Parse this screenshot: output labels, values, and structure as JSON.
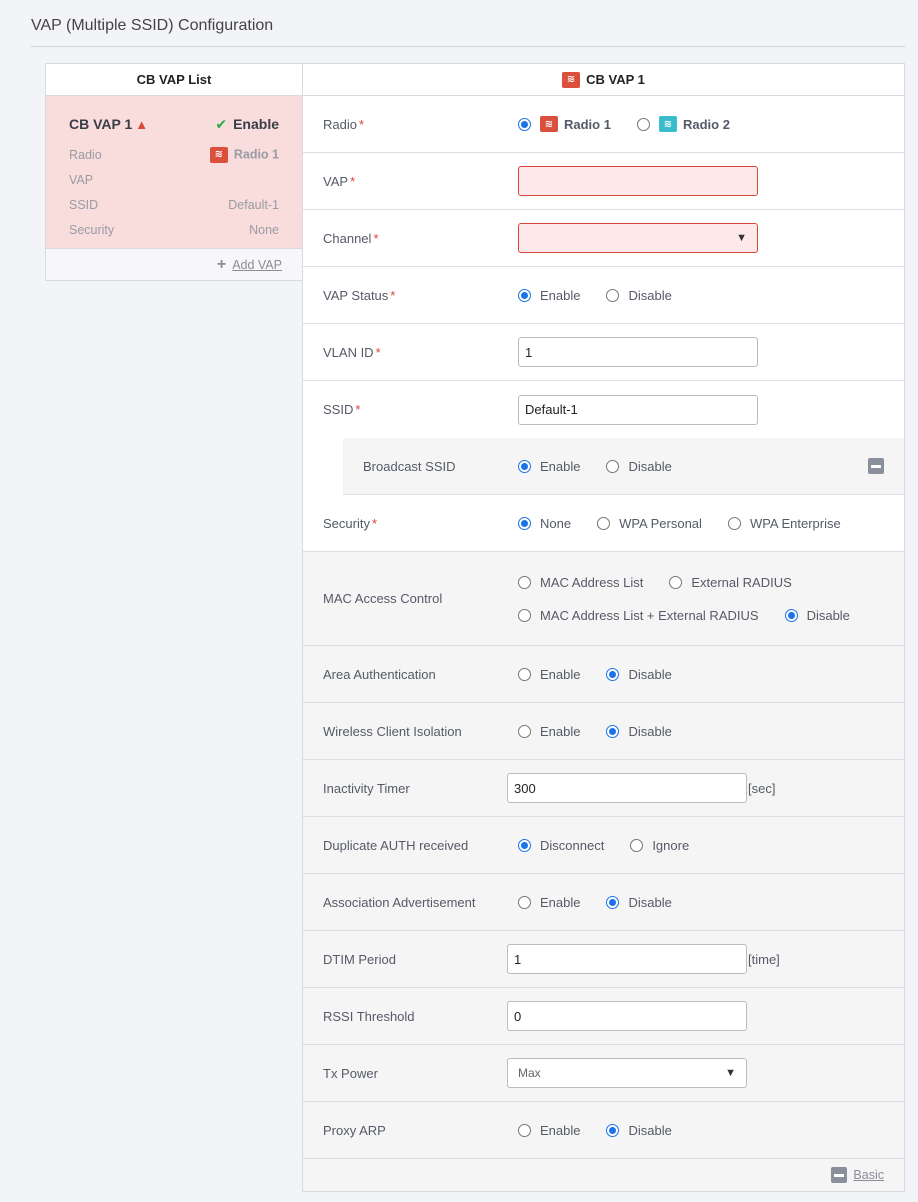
{
  "page": {
    "title": "VAP (Multiple SSID) Configuration"
  },
  "vap_list": {
    "header": "CB VAP List",
    "card": {
      "name": "CB VAP 1",
      "warning_icon": "warning-triangle-icon",
      "status": "Enable",
      "fields": [
        {
          "label": "Radio",
          "value": "Radio 1",
          "icon": "wifi-icon"
        },
        {
          "label": "VAP",
          "value": ""
        },
        {
          "label": "SSID",
          "value": "Default-1"
        },
        {
          "label": "Security",
          "value": "None"
        }
      ]
    },
    "add_label": "Add VAP"
  },
  "form": {
    "header": "CB VAP 1",
    "rows": [
      {
        "label": "Radio",
        "required": true,
        "type": "radio",
        "bold": true,
        "options": [
          {
            "label": "Radio 1",
            "checked": true,
            "icon": "r1"
          },
          {
            "label": "Radio 2",
            "checked": false,
            "icon": "r2"
          }
        ]
      },
      {
        "label": "VAP",
        "required": true,
        "type": "input",
        "value": "",
        "invalid": true
      },
      {
        "label": "Channel",
        "required": true,
        "type": "select",
        "value": "",
        "invalid": true
      },
      {
        "label": "VAP Status",
        "required": true,
        "type": "radio",
        "options": [
          {
            "label": "Enable",
            "checked": true
          },
          {
            "label": "Disable",
            "checked": false
          }
        ]
      },
      {
        "label": "VLAN ID",
        "required": true,
        "type": "input",
        "value": "1"
      },
      {
        "label": "SSID",
        "required": true,
        "type": "input",
        "value": "Default-1",
        "noborder": true
      },
      {
        "label": "Broadcast SSID",
        "type": "radio",
        "sub": true,
        "collapse": true,
        "options": [
          {
            "label": "Enable",
            "checked": true
          },
          {
            "label": "Disable",
            "checked": false
          }
        ]
      },
      {
        "label": "Security",
        "required": true,
        "type": "radio",
        "options": [
          {
            "label": "None",
            "checked": true
          },
          {
            "label": "WPA Personal",
            "checked": false
          },
          {
            "label": "WPA Enterprise",
            "checked": false
          }
        ]
      },
      {
        "label": "MAC Access Control",
        "type": "mac",
        "gray": true,
        "lines": [
          [
            {
              "label": "MAC Address List",
              "checked": false
            },
            {
              "label": "External RADIUS",
              "checked": false
            }
          ],
          [
            {
              "label": "MAC Address List + External RADIUS",
              "checked": false
            },
            {
              "label": "Disable",
              "checked": true
            }
          ]
        ]
      },
      {
        "label": "Area Authentication",
        "type": "radio",
        "gray": true,
        "options": [
          {
            "label": "Enable",
            "checked": false
          },
          {
            "label": "Disable",
            "checked": true
          }
        ]
      },
      {
        "label": "Wireless Client Isolation",
        "type": "radio",
        "gray": true,
        "options": [
          {
            "label": "Enable",
            "checked": false
          },
          {
            "label": "Disable",
            "checked": true
          }
        ]
      },
      {
        "label": "Inactivity Timer",
        "type": "input",
        "gray": true,
        "value": "300",
        "unit": "[sec]"
      },
      {
        "label": "Duplicate AUTH received",
        "type": "radio",
        "gray": true,
        "options": [
          {
            "label": "Disconnect",
            "checked": true
          },
          {
            "label": "Ignore",
            "checked": false
          }
        ]
      },
      {
        "label": "Association Advertisement",
        "type": "radio",
        "gray": true,
        "options": [
          {
            "label": "Enable",
            "checked": false
          },
          {
            "label": "Disable",
            "checked": true
          }
        ]
      },
      {
        "label": "DTIM Period",
        "type": "input",
        "gray": true,
        "value": "1",
        "unit": "[time]"
      },
      {
        "label": "RSSI Threshold",
        "type": "input",
        "gray": true,
        "value": "0"
      },
      {
        "label": "Tx Power",
        "type": "select",
        "gray": true,
        "value": "Max"
      },
      {
        "label": "Proxy ARP",
        "type": "radio",
        "gray": true,
        "options": [
          {
            "label": "Enable",
            "checked": false
          },
          {
            "label": "Disable",
            "checked": true
          }
        ]
      }
    ],
    "footer_link": "Basic"
  },
  "colors": {
    "accent": "#1a73e8",
    "error": "#d9463a",
    "radio1": "#d9503c",
    "radio2": "#3bbccc",
    "card_bg": "#f9dcdc"
  }
}
